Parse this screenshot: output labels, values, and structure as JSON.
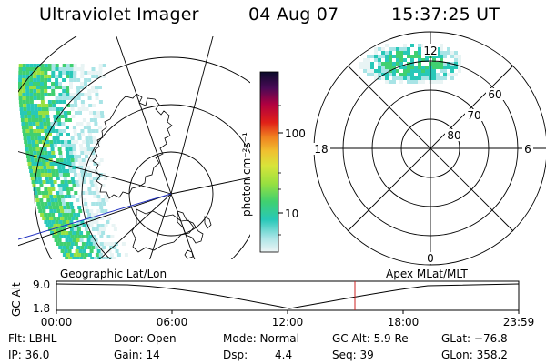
{
  "header": {
    "instrument": "Ultraviolet Imager",
    "date": "04 Aug 07",
    "time": "15:37:25 UT"
  },
  "map_panel": {
    "caption": "Geographic Lat/Lon"
  },
  "colorbar": {
    "label": "photon cm⁻²s⁻¹",
    "ticks": [
      "100",
      "10"
    ],
    "colors": [
      "#0b0b2a",
      "#4a0a56",
      "#c00040",
      "#e8201a",
      "#f08020",
      "#f0c030",
      "#d8e43a",
      "#90e040",
      "#40d060",
      "#30c8a0",
      "#a0e8e8",
      "#e8f4f4"
    ]
  },
  "polar_panel": {
    "caption": "Apex MLat/MLT",
    "mlt_labels": {
      "top": "12",
      "left": "18",
      "right": "6",
      "bottom": "0"
    },
    "mlat_labels": [
      "60",
      "70",
      "80"
    ]
  },
  "altitude_plot": {
    "ylabel": "GC Alt",
    "yticks": [
      "9.0",
      "1.8"
    ],
    "xticks": [
      "00:00",
      "06:00",
      "12:00",
      "18:00",
      "23:59"
    ]
  },
  "info": {
    "filter": "Flt: LBHL",
    "ip": "IP: 36.0",
    "door": "Door: Open",
    "gain": "Gain: 14",
    "mode": "Mode: Normal",
    "dsp_label": "Dsp:",
    "dsp_value": "4.4",
    "gc_alt": "GC Alt: 5.9 Re",
    "seq": "Seq: 39",
    "glat": "GLat: −76.8",
    "glon": "GLon: 358.2"
  }
}
